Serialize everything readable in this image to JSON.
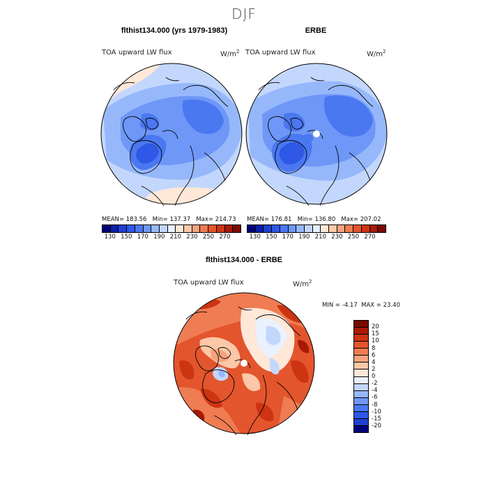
{
  "title": "DJF",
  "panels": [
    {
      "title": "flthist134.000 (yrs 1979-1983)",
      "variable": "TOA upward LW flux",
      "units": "W/m",
      "units_sup": "2",
      "stats": {
        "mean_label": "MEAN=",
        "mean": "183.56",
        "min_label": "Min=",
        "min": "137.37",
        "max_label": "Max=",
        "max": "214.73"
      }
    },
    {
      "title": "ERBE",
      "variable": "TOA upward LW flux",
      "units": "W/m",
      "units_sup": "2",
      "stats": {
        "mean_label": "MEAN=",
        "mean": "176.81",
        "min_label": "Min=",
        "min": "136.80",
        "max_label": "Max=",
        "max": "207.02"
      }
    }
  ],
  "shared_colorbar": {
    "ticks": [
      "130",
      "150",
      "170",
      "190",
      "210",
      "230",
      "250",
      "270"
    ],
    "colors": [
      "#00007a",
      "#0a1fa8",
      "#1f3fcf",
      "#2f58e6",
      "#4a78f0",
      "#6f97f7",
      "#96b8fb",
      "#c3d7fd",
      "#eaf1ff",
      "#ffe8d8",
      "#fcc8a8",
      "#f6a37d",
      "#ef7c52",
      "#e3552d",
      "#cc3412",
      "#a81a05",
      "#7a0a00"
    ]
  },
  "difference": {
    "title": "flthist134.000 - ERBE",
    "variable": "TOA upward LW flux",
    "units": "W/m",
    "units_sup": "2",
    "min_label": "MIN =",
    "min": "-4.17",
    "max_label": "MAX =",
    "max": "23.40",
    "colorbar": {
      "ticks": [
        "20",
        "15",
        "10",
        "8",
        "6",
        "4",
        "2",
        "0",
        "-2",
        "-4",
        "-6",
        "-8",
        "-10",
        "-15",
        "-20"
      ],
      "colors": [
        "#7a0a00",
        "#a81a05",
        "#cc3412",
        "#e3552d",
        "#ef7c52",
        "#f6a37d",
        "#fcc8a8",
        "#ffe8d8",
        "#eaf1ff",
        "#c3d7fd",
        "#96b8fb",
        "#6f97f7",
        "#4a78f0",
        "#2f58e6",
        "#1f3fcf",
        "#00007a"
      ]
    }
  }
}
